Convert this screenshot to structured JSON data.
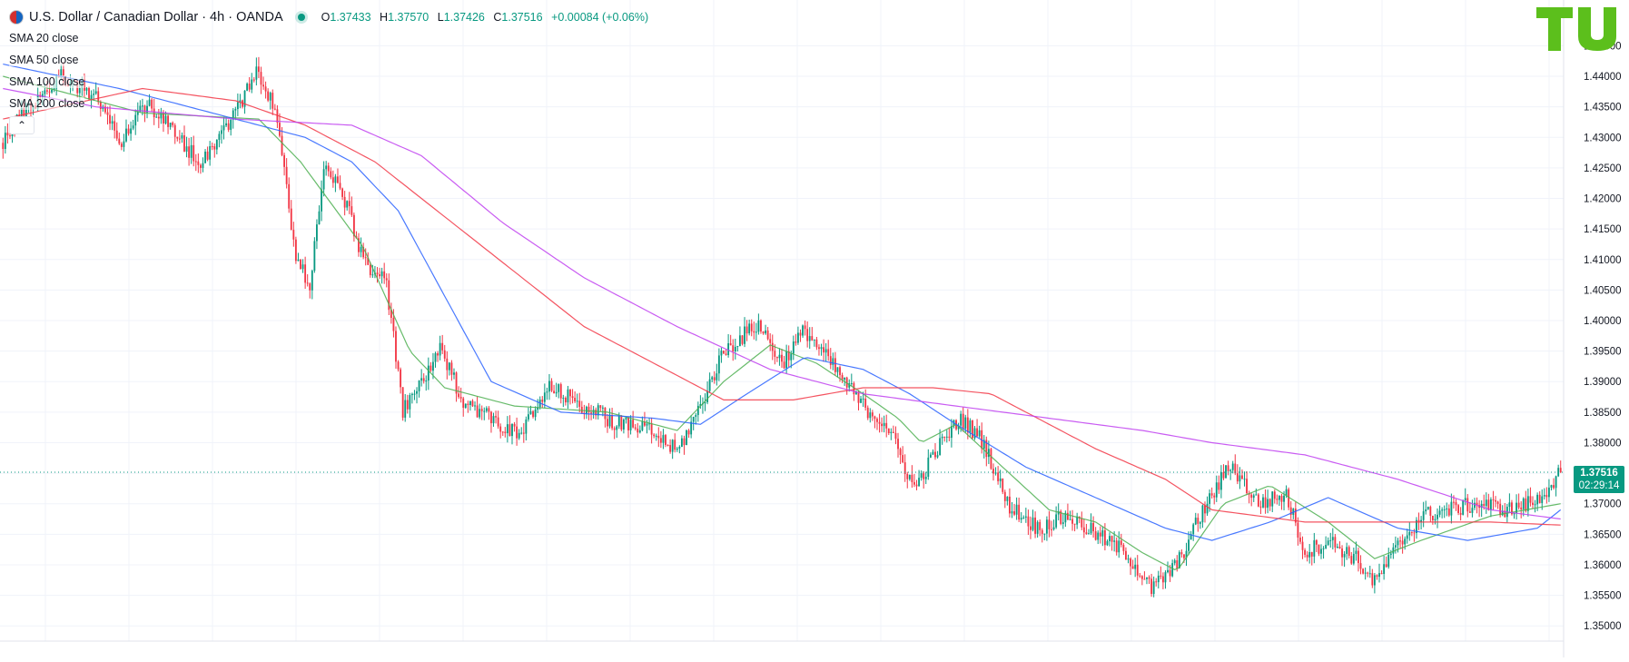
{
  "header": {
    "symbol_title": "U.S. Dollar / Canadian Dollar · 4h · OANDA",
    "open_label": "O",
    "open": "1.37433",
    "high_label": "H",
    "high": "1.37570",
    "low_label": "L",
    "low": "1.37426",
    "close_label": "C",
    "close": "1.37516",
    "change": "+0.00084 (+0.06%)"
  },
  "indicators": [
    {
      "label": "SMA 20 close",
      "color": "#4caf50"
    },
    {
      "label": "SMA 50 close",
      "color": "#2962ff"
    },
    {
      "label": "SMA 100 close",
      "color": "#f23645"
    },
    {
      "label": "SMA 200 close",
      "color": "#c040f0"
    }
  ],
  "price_tag": {
    "price": "1.37516",
    "countdown": "02:29:14"
  },
  "colors": {
    "up": "#089981",
    "down": "#f23645",
    "accent": "#089981",
    "logo": "#5cbf1c"
  },
  "chart_data": {
    "type": "candlestick",
    "title": "U.S. Dollar / Canadian Dollar · 4h · OANDA",
    "timeframe": "4h",
    "last_price": 1.37516,
    "ylim": [
      1.3475,
      1.4525
    ],
    "y_ticks": [
      "1.35000",
      "1.35500",
      "1.36000",
      "1.36500",
      "1.37000",
      "1.37500",
      "1.38000",
      "1.38500",
      "1.39000",
      "1.39500",
      "1.40000",
      "1.40500",
      "1.41000",
      "1.41500",
      "1.42000",
      "1.42500",
      "1.43000",
      "1.43500",
      "1.44000",
      "1.44500"
    ],
    "grid": true,
    "close_path": [
      [
        0,
        1.4295
      ],
      [
        10,
        1.4345
      ],
      [
        25,
        1.44
      ],
      [
        40,
        1.437
      ],
      [
        50,
        1.429
      ],
      [
        62,
        1.436
      ],
      [
        75,
        1.43
      ],
      [
        85,
        1.426
      ],
      [
        98,
        1.433
      ],
      [
        110,
        1.441
      ],
      [
        118,
        1.433
      ],
      [
        126,
        1.41
      ],
      [
        132,
        1.406
      ],
      [
        138,
        1.425
      ],
      [
        146,
        1.421
      ],
      [
        155,
        1.41
      ],
      [
        165,
        1.406
      ],
      [
        172,
        1.385
      ],
      [
        180,
        1.39
      ],
      [
        188,
        1.395
      ],
      [
        198,
        1.387
      ],
      [
        210,
        1.384
      ],
      [
        222,
        1.381
      ],
      [
        235,
        1.389
      ],
      [
        250,
        1.386
      ],
      [
        265,
        1.383
      ],
      [
        278,
        1.382
      ],
      [
        290,
        1.3785
      ],
      [
        300,
        1.386
      ],
      [
        310,
        1.395
      ],
      [
        325,
        1.3995
      ],
      [
        335,
        1.393
      ],
      [
        345,
        1.3985
      ],
      [
        358,
        1.392
      ],
      [
        370,
        1.386
      ],
      [
        380,
        1.383
      ],
      [
        392,
        1.3725
      ],
      [
        402,
        1.379
      ],
      [
        412,
        1.384
      ],
      [
        422,
        1.38
      ],
      [
        432,
        1.37
      ],
      [
        445,
        1.366
      ],
      [
        458,
        1.368
      ],
      [
        470,
        1.365
      ],
      [
        483,
        1.362
      ],
      [
        494,
        1.356
      ],
      [
        505,
        1.36
      ],
      [
        515,
        1.368
      ],
      [
        528,
        1.3765
      ],
      [
        540,
        1.37
      ],
      [
        552,
        1.3715
      ],
      [
        560,
        1.362
      ],
      [
        570,
        1.364
      ],
      [
        582,
        1.361
      ],
      [
        590,
        1.357
      ],
      [
        600,
        1.363
      ],
      [
        610,
        1.368
      ],
      [
        622,
        1.369
      ],
      [
        635,
        1.37
      ],
      [
        648,
        1.369
      ],
      [
        660,
        1.3705
      ],
      [
        670,
        1.3752
      ]
    ],
    "series": [
      {
        "name": "SMA 20 close",
        "points": [
          [
            0,
            1.44
          ],
          [
            60,
            1.434
          ],
          [
            110,
            1.433
          ],
          [
            128,
            1.426
          ],
          [
            155,
            1.412
          ],
          [
            175,
            1.395
          ],
          [
            190,
            1.389
          ],
          [
            220,
            1.386
          ],
          [
            260,
            1.385
          ],
          [
            290,
            1.382
          ],
          [
            310,
            1.39
          ],
          [
            330,
            1.396
          ],
          [
            350,
            1.393
          ],
          [
            370,
            1.388
          ],
          [
            385,
            1.384
          ],
          [
            395,
            1.38
          ],
          [
            410,
            1.383
          ],
          [
            430,
            1.376
          ],
          [
            450,
            1.369
          ],
          [
            470,
            1.367
          ],
          [
            490,
            1.362
          ],
          [
            505,
            1.359
          ],
          [
            525,
            1.37
          ],
          [
            545,
            1.373
          ],
          [
            570,
            1.367
          ],
          [
            590,
            1.361
          ],
          [
            610,
            1.364
          ],
          [
            640,
            1.368
          ],
          [
            670,
            1.37
          ]
        ]
      },
      {
        "name": "SMA 50 close",
        "points": [
          [
            0,
            1.442
          ],
          [
            50,
            1.438
          ],
          [
            100,
            1.433
          ],
          [
            130,
            1.43
          ],
          [
            150,
            1.426
          ],
          [
            170,
            1.418
          ],
          [
            190,
            1.404
          ],
          [
            210,
            1.39
          ],
          [
            240,
            1.385
          ],
          [
            280,
            1.384
          ],
          [
            300,
            1.383
          ],
          [
            320,
            1.388
          ],
          [
            345,
            1.394
          ],
          [
            370,
            1.392
          ],
          [
            390,
            1.388
          ],
          [
            410,
            1.383
          ],
          [
            440,
            1.376
          ],
          [
            470,
            1.371
          ],
          [
            500,
            1.366
          ],
          [
            520,
            1.364
          ],
          [
            545,
            1.367
          ],
          [
            570,
            1.371
          ],
          [
            600,
            1.366
          ],
          [
            630,
            1.364
          ],
          [
            660,
            1.366
          ],
          [
            670,
            1.369
          ]
        ]
      },
      {
        "name": "SMA 100 close",
        "points": [
          [
            0,
            1.433
          ],
          [
            60,
            1.438
          ],
          [
            100,
            1.436
          ],
          [
            130,
            1.432
          ],
          [
            160,
            1.426
          ],
          [
            190,
            1.417
          ],
          [
            220,
            1.408
          ],
          [
            250,
            1.399
          ],
          [
            280,
            1.393
          ],
          [
            310,
            1.387
          ],
          [
            340,
            1.387
          ],
          [
            370,
            1.389
          ],
          [
            400,
            1.389
          ],
          [
            425,
            1.388
          ],
          [
            445,
            1.384
          ],
          [
            470,
            1.379
          ],
          [
            500,
            1.374
          ],
          [
            520,
            1.369
          ],
          [
            560,
            1.367
          ],
          [
            600,
            1.367
          ],
          [
            640,
            1.367
          ],
          [
            670,
            1.3665
          ]
        ]
      },
      {
        "name": "SMA 200 close",
        "points": [
          [
            0,
            1.438
          ],
          [
            40,
            1.435
          ],
          [
            100,
            1.433
          ],
          [
            150,
            1.432
          ],
          [
            180,
            1.427
          ],
          [
            215,
            1.416
          ],
          [
            250,
            1.407
          ],
          [
            290,
            1.399
          ],
          [
            330,
            1.392
          ],
          [
            370,
            1.388
          ],
          [
            410,
            1.386
          ],
          [
            450,
            1.384
          ],
          [
            490,
            1.382
          ],
          [
            520,
            1.38
          ],
          [
            560,
            1.378
          ],
          [
            600,
            1.374
          ],
          [
            640,
            1.369
          ],
          [
            670,
            1.3675
          ]
        ]
      }
    ]
  }
}
